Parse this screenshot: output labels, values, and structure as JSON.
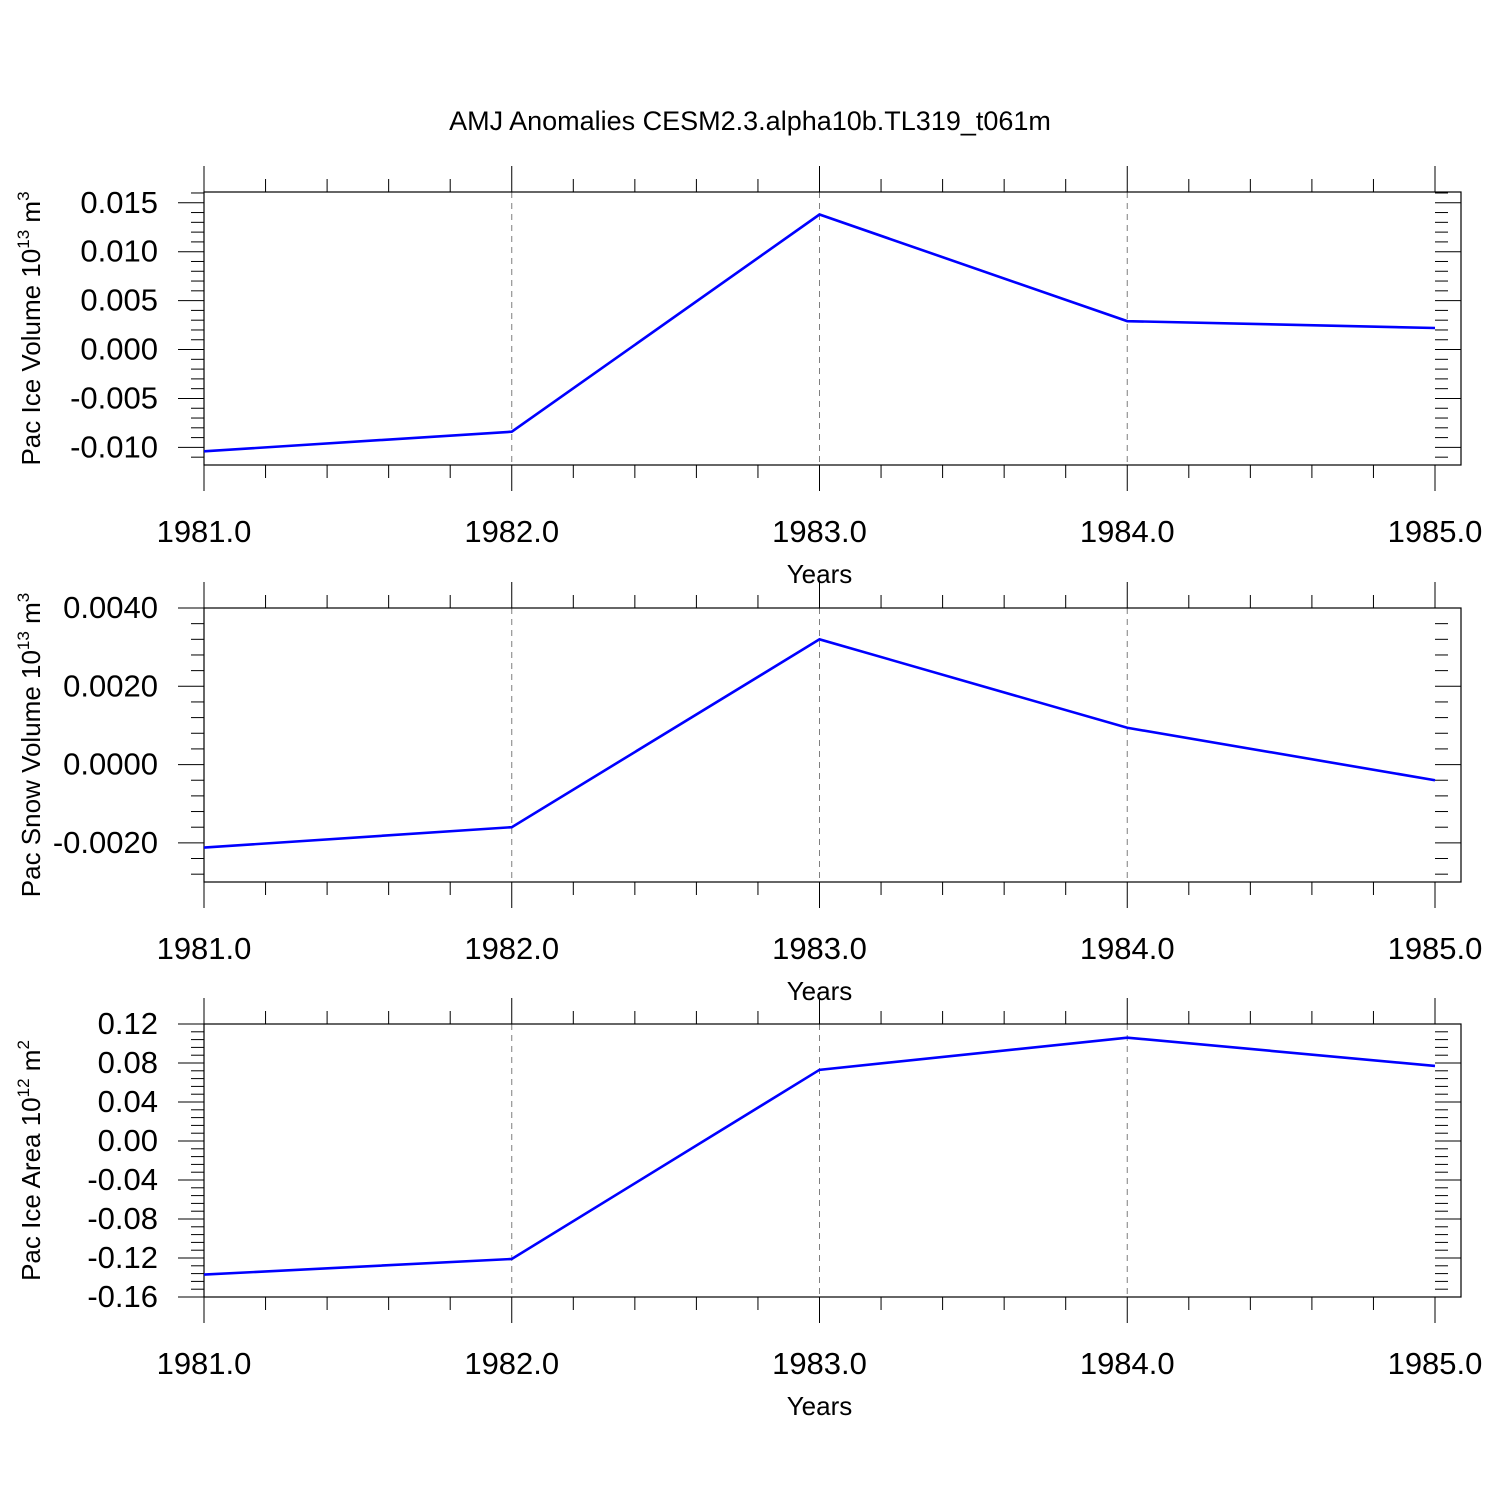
{
  "title": "AMJ Anomalies CESM2.3.alpha10b.TL319_t061m",
  "colors": {
    "line": "#0000ff",
    "axis": "#000000",
    "grid": "#7f7f7f"
  },
  "chart_data": [
    {
      "type": "line",
      "ylabel": "Pac Ice Volume 10",
      "ylabel_exp": "13",
      "ylabel_unit": " m",
      "ylabel_unit_exp": "3",
      "xlabel": "Years",
      "xlim": [
        1981,
        1985
      ],
      "ylim": [
        -0.0118,
        0.0161
      ],
      "yticks": [
        -0.01,
        -0.005,
        0.0,
        0.005,
        0.01,
        0.015
      ],
      "ytick_labels": [
        "-0.010",
        "-0.005",
        "0.000",
        "0.005",
        "0.010",
        "0.015"
      ],
      "xticks": [
        1981,
        1982,
        1983,
        1984,
        1985
      ],
      "xtick_labels": [
        "1981.0",
        "1982.0",
        "1983.0",
        "1984.0",
        "1985.0"
      ],
      "x": [
        1981,
        1982,
        1983,
        1984,
        1985
      ],
      "series": [
        {
          "values": [
            -0.0104,
            -0.0084,
            0.0138,
            0.0029,
            0.0022
          ]
        }
      ],
      "grid": "vertical dashed at major x ticks"
    },
    {
      "type": "line",
      "ylabel": "Pac Snow Volume 10",
      "ylabel_exp": "13",
      "ylabel_unit": " m",
      "ylabel_unit_exp": "3",
      "xlabel": "Years",
      "xlim": [
        1981,
        1985
      ],
      "ylim": [
        -0.003,
        0.004
      ],
      "yticks": [
        -0.002,
        0.0,
        0.002,
        0.004
      ],
      "ytick_labels": [
        "-0.0020",
        "0.0000",
        "0.0020",
        "0.0040"
      ],
      "xticks": [
        1981,
        1982,
        1983,
        1984,
        1985
      ],
      "xtick_labels": [
        "1981.0",
        "1982.0",
        "1983.0",
        "1984.0",
        "1985.0"
      ],
      "x": [
        1981,
        1982,
        1983,
        1984,
        1985
      ],
      "series": [
        {
          "values": [
            -0.00212,
            -0.0016,
            0.0032,
            0.00094,
            -0.0004
          ]
        }
      ],
      "grid": "vertical dashed at major x ticks"
    },
    {
      "type": "line",
      "ylabel": "Pac Ice Area 10",
      "ylabel_exp": "12",
      "ylabel_unit": " m",
      "ylabel_unit_exp": "2",
      "xlabel": "Years",
      "xlim": [
        1981,
        1985
      ],
      "ylim": [
        -0.16,
        0.12
      ],
      "yticks": [
        -0.16,
        -0.12,
        -0.08,
        -0.04,
        0.0,
        0.04,
        0.08,
        0.12
      ],
      "ytick_labels": [
        "-0.16",
        "-0.12",
        "-0.08",
        "-0.04",
        "0.00",
        "0.04",
        "0.08",
        "0.12"
      ],
      "xticks": [
        1981,
        1982,
        1983,
        1984,
        1985
      ],
      "xtick_labels": [
        "1981.0",
        "1982.0",
        "1983.0",
        "1984.0",
        "1985.0"
      ],
      "x": [
        1981,
        1982,
        1983,
        1984,
        1985
      ],
      "series": [
        {
          "values": [
            -0.137,
            -0.121,
            0.073,
            0.106,
            0.077
          ]
        }
      ],
      "grid": "vertical dashed at major x ticks"
    }
  ]
}
